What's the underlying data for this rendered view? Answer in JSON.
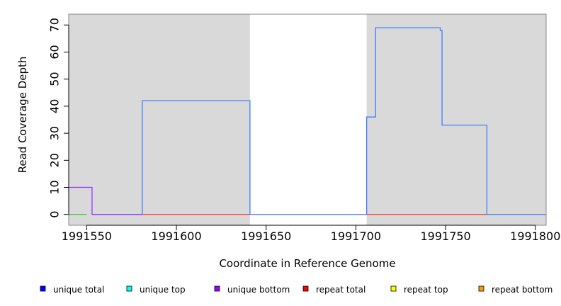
{
  "chart_data": {
    "type": "line",
    "title": "",
    "xlabel": "Coordinate in Reference Genome",
    "ylabel": "Read Coverage Depth",
    "xlim": [
      1991540,
      1991806
    ],
    "ylim": [
      -4,
      74
    ],
    "x_ticks": [
      1991550,
      1991600,
      1991650,
      1991700,
      1991750,
      1991800
    ],
    "y_ticks": [
      0,
      10,
      20,
      30,
      40,
      50,
      60,
      70
    ],
    "grid": false,
    "background_color": "#d9d9d9",
    "white_regions": [
      [
        1991641,
        1991706
      ]
    ],
    "legend": {
      "placement": "bottom",
      "entries": [
        {
          "label": "unique total",
          "color": "#0000ff"
        },
        {
          "label": "unique top",
          "color": "#00ffff"
        },
        {
          "label": "unique bottom",
          "color": "#9900ff"
        },
        {
          "label": "repeat total",
          "color": "#ff0000"
        },
        {
          "label": "repeat top",
          "color": "#ffff00"
        },
        {
          "label": "repeat bottom",
          "color": "#ff9900"
        }
      ]
    },
    "series": [
      {
        "color": "#3d7fff",
        "style": "step",
        "points": [
          [
            1991553,
            0
          ],
          [
            1991581,
            0
          ],
          [
            1991581,
            42
          ],
          [
            1991641,
            42
          ],
          [
            1991641,
            0
          ],
          [
            1991706,
            0
          ],
          [
            1991706,
            36
          ],
          [
            1991711,
            36
          ],
          [
            1991711,
            69
          ],
          [
            1991747,
            69
          ],
          [
            1991747,
            68
          ],
          [
            1991748,
            68
          ],
          [
            1991748,
            33
          ],
          [
            1991773,
            33
          ],
          [
            1991773,
            0
          ],
          [
            1991806,
            0
          ]
        ]
      },
      {
        "color": "#9933ff",
        "style": "step",
        "points": [
          [
            1991540,
            10
          ],
          [
            1991553,
            10
          ],
          [
            1991553,
            0
          ],
          [
            1991581,
            0
          ]
        ]
      },
      {
        "color": "#ff3333",
        "style": "step",
        "points": [
          [
            1991581,
            0
          ],
          [
            1991641,
            0
          ]
        ]
      },
      {
        "color": "#33cc33",
        "style": "step",
        "points": [
          [
            1991540,
            0
          ],
          [
            1991550,
            0
          ]
        ]
      },
      {
        "color": "#ff3333",
        "style": "step",
        "points": [
          [
            1991706,
            0
          ],
          [
            1991773,
            0
          ]
        ]
      }
    ]
  }
}
